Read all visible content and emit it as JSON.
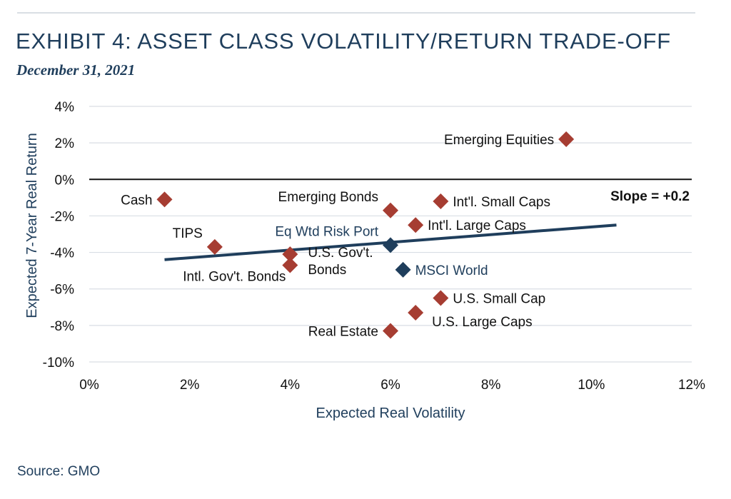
{
  "header": {
    "title": "EXHIBIT 4: ASSET CLASS VOLATILITY/RETURN TRADE-OFF",
    "subtitle": "December 31, 2021"
  },
  "footer": {
    "source": "Source: GMO"
  },
  "colors": {
    "title": "#1f3e5c",
    "point": "#a63d32",
    "benchmark": "#1f3e5c",
    "trend": "#1f3e5c",
    "grid": "#d9dee4"
  },
  "chart_data": {
    "type": "scatter",
    "xlabel": "Expected Real Volatility",
    "ylabel": "Expected 7-Year Real Return",
    "xlim": [
      0,
      12
    ],
    "ylim": [
      -10,
      4
    ],
    "x_ticks": [
      0,
      2,
      4,
      6,
      8,
      10,
      12
    ],
    "y_ticks": [
      4,
      2,
      0,
      -2,
      -4,
      -6,
      -8,
      -10
    ],
    "x_tick_labels": [
      "0%",
      "2%",
      "4%",
      "6%",
      "8%",
      "10%",
      "12%"
    ],
    "y_tick_labels": [
      "4%",
      "2%",
      "0%",
      "-2%",
      "-4%",
      "-6%",
      "-8%",
      "-10%"
    ],
    "grid": "horizontal",
    "points": [
      {
        "label": "Emerging Equities",
        "x": 9.5,
        "y": 2.2,
        "color": "#a63d32",
        "label_pos": "left"
      },
      {
        "label": "Cash",
        "x": 1.5,
        "y": -1.1,
        "color": "#a63d32",
        "label_pos": "left"
      },
      {
        "label": "Emerging Bonds",
        "x": 6.0,
        "y": -1.7,
        "color": "#a63d32",
        "label_pos": "upper-left"
      },
      {
        "label": "Int'l. Small Caps",
        "x": 7.0,
        "y": -1.2,
        "color": "#a63d32",
        "label_pos": "right"
      },
      {
        "label": "Int'l. Large Caps",
        "x": 6.5,
        "y": -2.5,
        "color": "#a63d32",
        "label_pos": "right"
      },
      {
        "label": "TIPS",
        "x": 2.5,
        "y": -3.7,
        "color": "#a63d32",
        "label_pos": "upper-left"
      },
      {
        "label": "U.S. Gov't. Bonds",
        "x": 4.0,
        "y": -4.1,
        "color": "#a63d32",
        "label_pos": "right-two-line"
      },
      {
        "label": "Intl. Gov't. Bonds",
        "x": 4.0,
        "y": -4.7,
        "color": "#a63d32",
        "label_pos": "lower-left"
      },
      {
        "label": "Eq Wtd Risk Port",
        "x": 6.0,
        "y": -3.6,
        "color": "#1f3e5c",
        "label_pos": "upper-left"
      },
      {
        "label": "MSCI World",
        "x": 6.25,
        "y": -4.95,
        "color": "#1f3e5c",
        "label_pos": "right"
      },
      {
        "label": "U.S. Small Cap",
        "x": 7.0,
        "y": -6.5,
        "color": "#a63d32",
        "label_pos": "right"
      },
      {
        "label": "U.S. Large Caps",
        "x": 6.5,
        "y": -7.3,
        "color": "#a63d32",
        "label_pos": "lower-right"
      },
      {
        "label": "Real Estate",
        "x": 6.0,
        "y": -8.3,
        "color": "#a63d32",
        "label_pos": "left"
      }
    ],
    "trendline": {
      "x": [
        1.5,
        10.5
      ],
      "y": [
        -4.4,
        -2.5
      ]
    },
    "annotation": "Slope = +0.2"
  }
}
